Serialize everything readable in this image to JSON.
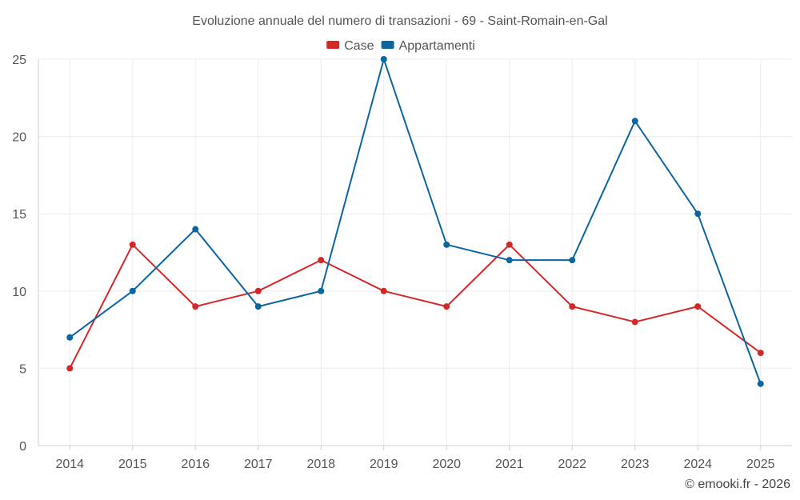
{
  "chart_data": {
    "type": "line",
    "title": "Evoluzione annuale del numero di transazioni - 69 - Saint-Romain-en-Gal",
    "categories": [
      "2014",
      "2015",
      "2016",
      "2017",
      "2018",
      "2019",
      "2020",
      "2021",
      "2022",
      "2023",
      "2024",
      "2025"
    ],
    "series": [
      {
        "name": "Case",
        "color": "#d62728",
        "values": [
          5,
          13,
          9,
          10,
          12,
          10,
          9,
          13,
          9,
          8,
          9,
          6
        ]
      },
      {
        "name": "Appartamenti",
        "color": "#0b66a0",
        "values": [
          7,
          10,
          14,
          9,
          10,
          25,
          13,
          12,
          12,
          21,
          15,
          4
        ]
      }
    ],
    "y_ticks": [
      0,
      5,
      10,
      15,
      20,
      25
    ],
    "ylim": [
      0,
      25
    ],
    "grid": true,
    "legend_position": "top-center",
    "xlabel": "",
    "ylabel": ""
  },
  "credit": "© emooki.fr - 2026"
}
